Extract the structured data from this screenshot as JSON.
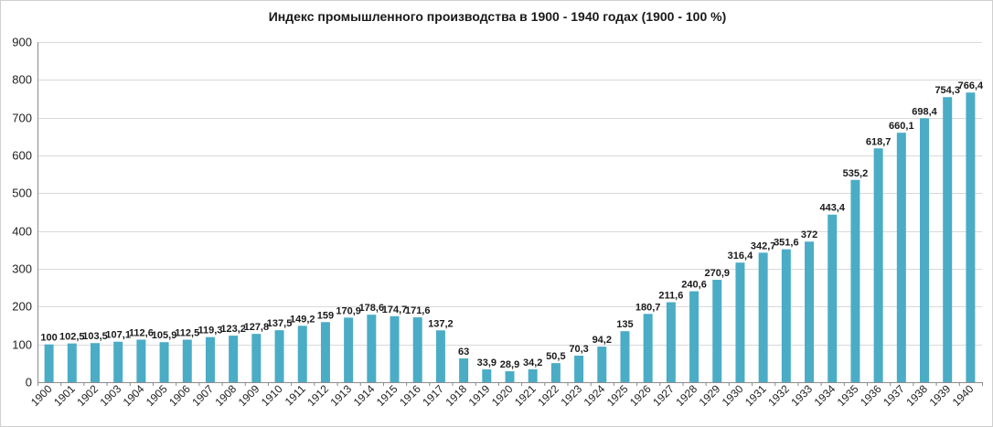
{
  "chart_data": {
    "type": "bar",
    "title": "Индекс промышленного производства в 1900 - 1940 годах (1900 - 100 %)",
    "xlabel": "",
    "ylabel": "",
    "ylim": [
      0,
      900
    ],
    "yticks": [
      "0",
      "100",
      "200",
      "300",
      "400",
      "500",
      "600",
      "700",
      "800",
      "900"
    ],
    "grid": true,
    "legend": "none",
    "bar_color": "#4bacc6",
    "categories": [
      "1900",
      "1901",
      "1902",
      "1903",
      "1904",
      "1905",
      "1906",
      "1907",
      "1908",
      "1909",
      "1910",
      "1911",
      "1912",
      "1913",
      "1914",
      "1915",
      "1916",
      "1917",
      "1918",
      "1919",
      "1920",
      "1921",
      "1922",
      "1923",
      "1924",
      "1925",
      "1926",
      "1927",
      "1928",
      "1929",
      "1930",
      "1931",
      "1932",
      "1933",
      "1934",
      "1935",
      "1936",
      "1937",
      "1938",
      "1939",
      "1940"
    ],
    "values": [
      100,
      102.5,
      103.5,
      107.1,
      112.6,
      105.9,
      112.5,
      119.3,
      123.2,
      127.8,
      137.5,
      149.2,
      159,
      170.9,
      178.6,
      174.7,
      171.6,
      137.2,
      63,
      33.9,
      28.9,
      34.2,
      50.5,
      70.3,
      94.2,
      135,
      180.7,
      211.6,
      240.6,
      270.9,
      316.4,
      342.7,
      351.6,
      372,
      443.4,
      535.2,
      618.7,
      660.1,
      698.4,
      754.3,
      766.4
    ],
    "data_labels": [
      "100",
      "102,5",
      "103,5",
      "107,1",
      "112,6",
      "105,9",
      "112,5",
      "119,3",
      "123,2",
      "127,8",
      "137,5",
      "149,2",
      "159",
      "170,9",
      "178,6",
      "174,7",
      "171,6",
      "137,2",
      "63",
      "33,9",
      "28,9",
      "34,2",
      "50,5",
      "70,3",
      "94,2",
      "135",
      "180,7",
      "211,6",
      "240,6",
      "270,9",
      "316,4",
      "342,7",
      "351,6",
      "372",
      "443,4",
      "535,2",
      "618,7",
      "660,1",
      "698,4",
      "754,3",
      "766,4"
    ]
  }
}
